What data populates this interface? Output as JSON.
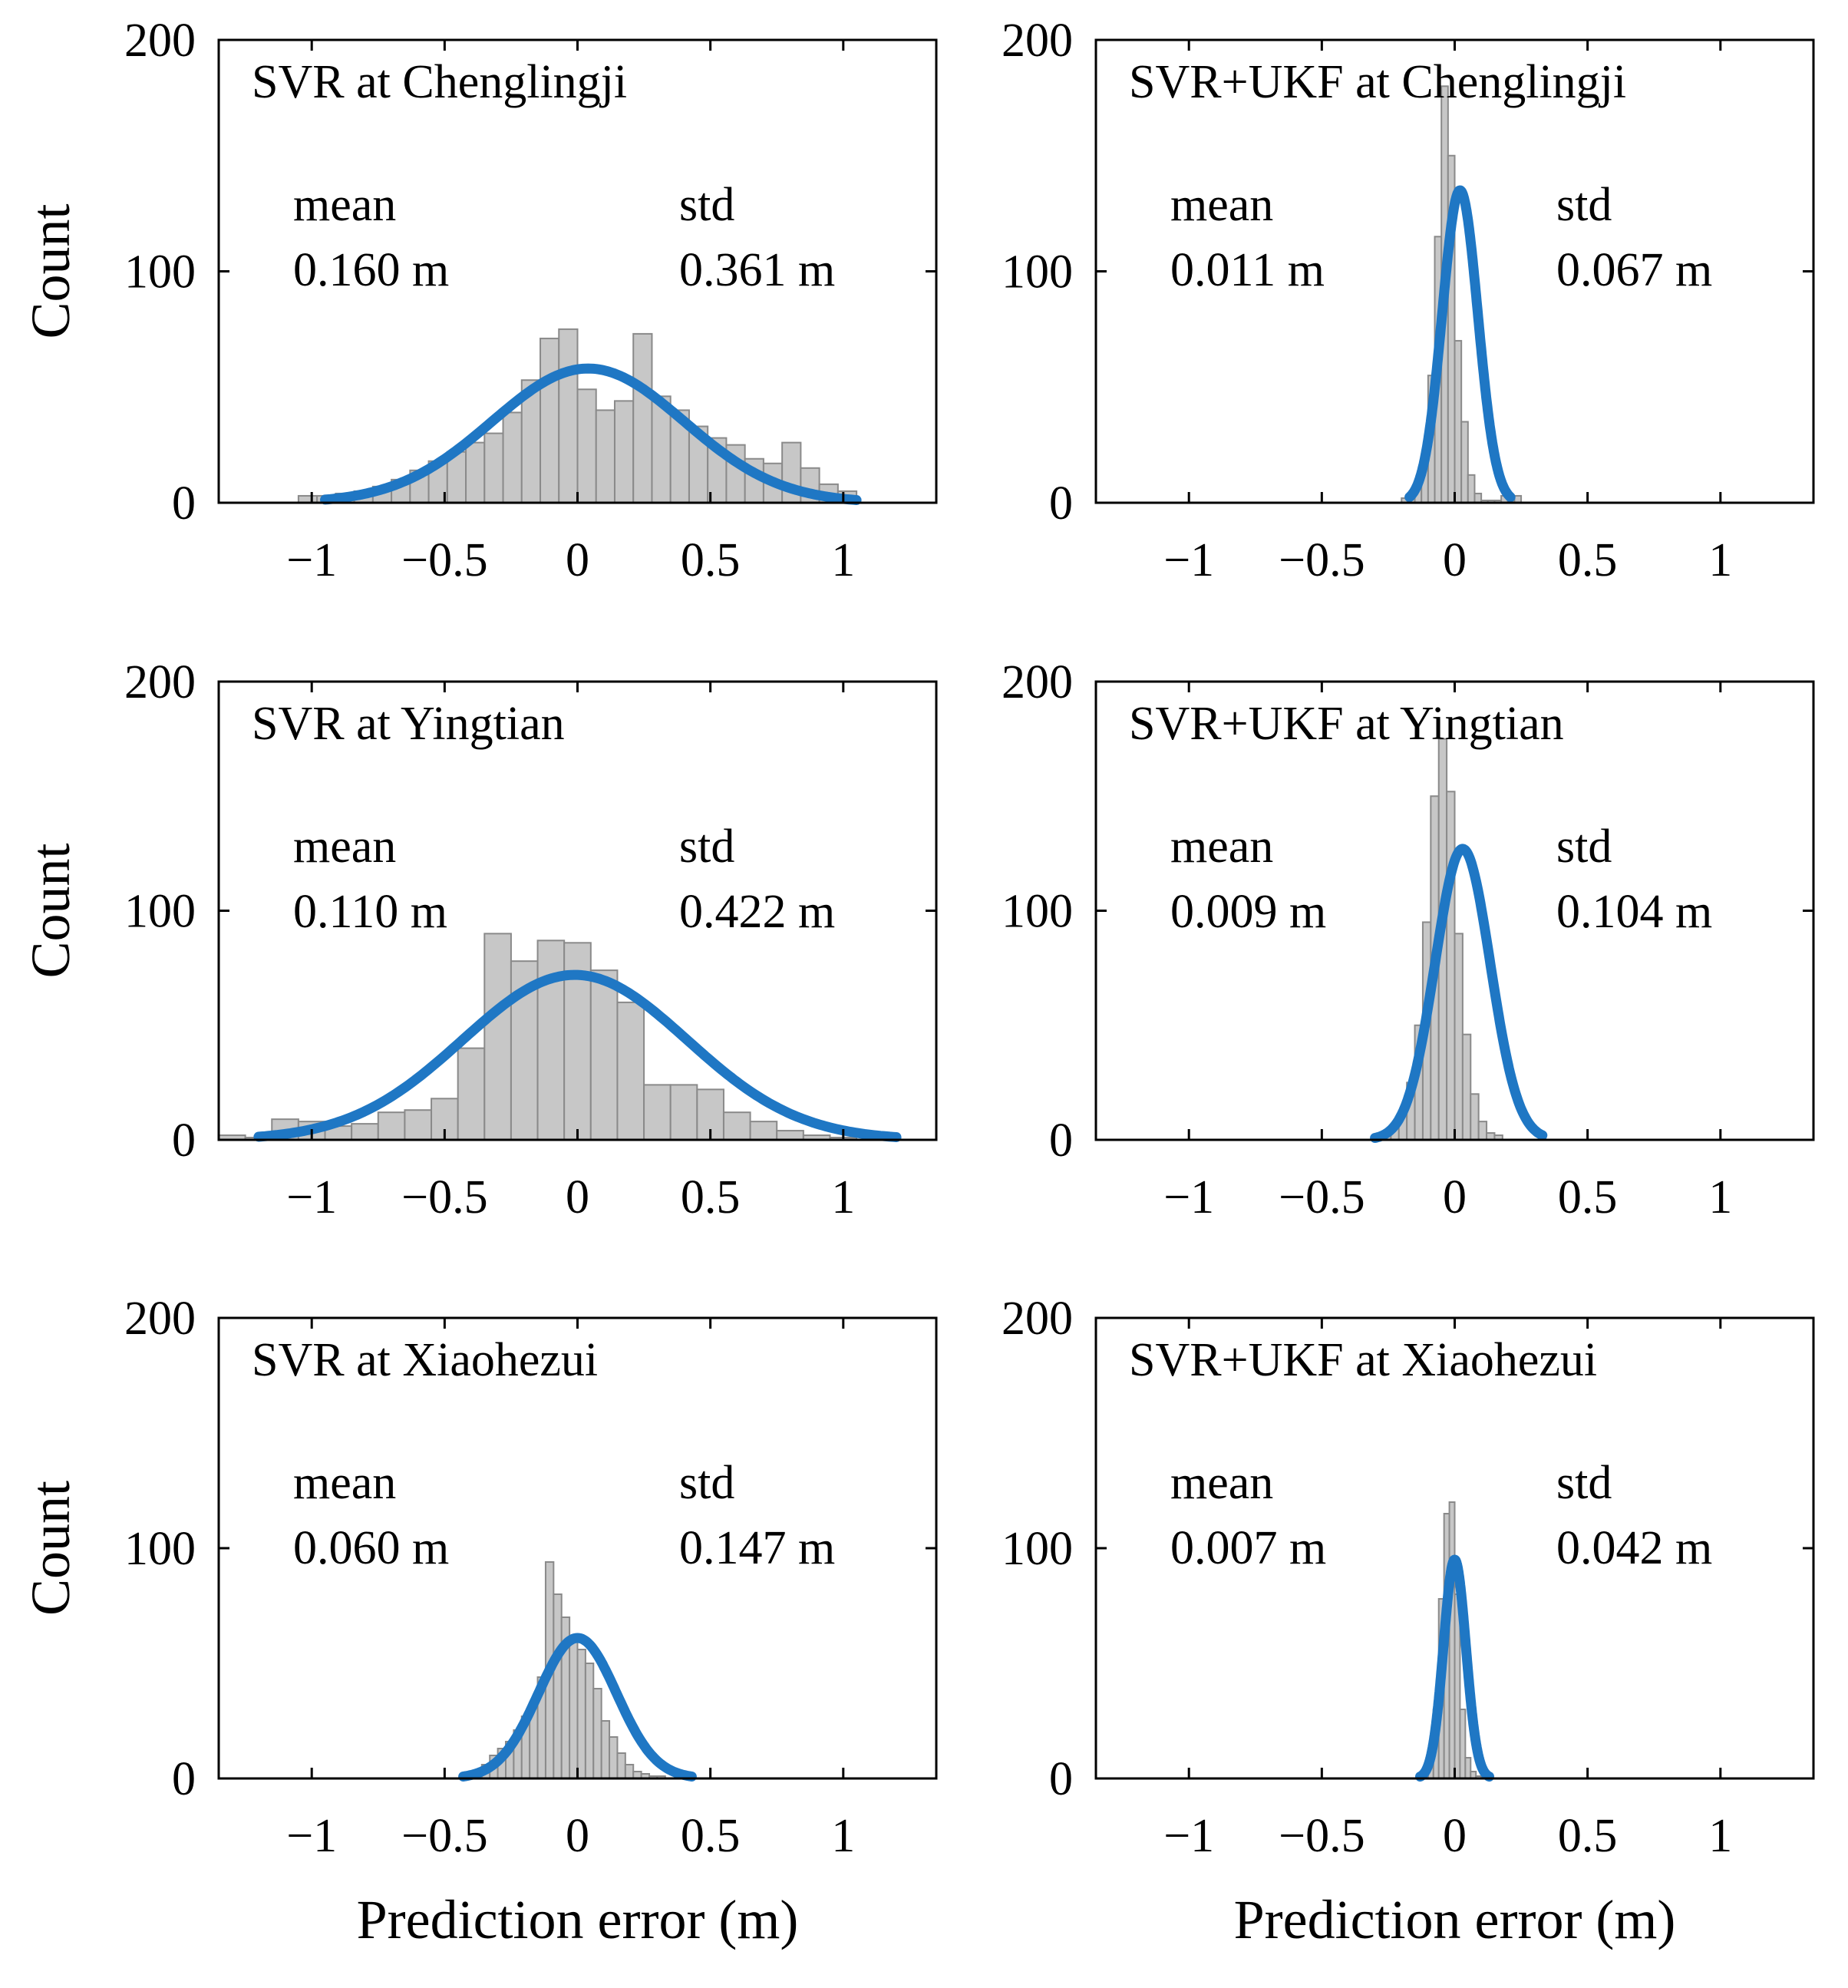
{
  "figure": {
    "ylabel": "Count",
    "xlabel": "Prediction error (m)",
    "mean_label": "mean",
    "std_label": "std"
  },
  "colors": {
    "bar_fill": "#c7c7c7",
    "bar_edge": "#8a8a8a",
    "fit_line": "#1f77c4"
  },
  "chart_data": [
    {
      "type": "bar",
      "title": "SVR  at Chenglingji",
      "model": "SVR",
      "station": "Chenglingji",
      "mean": "0.160 m",
      "std": "0.361 m",
      "mu": 0.04,
      "sigma": 0.361,
      "fit_peak": 58,
      "fit_range": [
        -0.95,
        1.05
      ],
      "xlim": [
        -1.35,
        1.35
      ],
      "ylim": [
        0,
        200
      ],
      "xticks": [
        -1,
        -0.5,
        0,
        0.5,
        1
      ],
      "yticks": [
        0,
        100,
        200
      ],
      "bins": {
        "start": -1.05,
        "width": 0.07,
        "counts": [
          3,
          3,
          4,
          5,
          7,
          10,
          14,
          18,
          22,
          26,
          30,
          39,
          53,
          71,
          75,
          49,
          40,
          44,
          73,
          46,
          40,
          33,
          28,
          25,
          19,
          17,
          26,
          15,
          8,
          5
        ]
      }
    },
    {
      "type": "bar",
      "title": "SVR+UKF  at Chenglingji",
      "model": "SVR+UKF",
      "station": "Chenglingji",
      "mean": "0.011 m",
      "std": "0.067 m",
      "mu": 0.02,
      "sigma": 0.067,
      "fit_peak": 135,
      "fit_range": [
        -0.17,
        0.21
      ],
      "xlim": [
        -1.35,
        1.35
      ],
      "ylim": [
        0,
        200
      ],
      "xticks": [
        -1,
        -0.5,
        0,
        0.5,
        1
      ],
      "yticks": [
        0,
        100,
        200
      ],
      "bins": {
        "start": -0.2,
        "width": 0.025,
        "counts": [
          2,
          2,
          8,
          20,
          55,
          115,
          180,
          150,
          70,
          35,
          12,
          4,
          1,
          1,
          1,
          3,
          2,
          3
        ]
      }
    },
    {
      "type": "bar",
      "title": "SVR  at Yingtian",
      "model": "SVR",
      "station": "Yingtian",
      "mean": "0.110 m",
      "std": "0.422 m",
      "mu": -0.01,
      "sigma": 0.422,
      "fit_peak": 72,
      "fit_range": [
        -1.2,
        1.2
      ],
      "xlim": [
        -1.35,
        1.35
      ],
      "ylim": [
        0,
        200
      ],
      "xticks": [
        -1,
        -0.5,
        0,
        0.5,
        1
      ],
      "yticks": [
        0,
        100,
        200
      ],
      "bins": {
        "start": -1.35,
        "width": 0.1,
        "counts": [
          2,
          1,
          9,
          8,
          6,
          7,
          12,
          13,
          18,
          40,
          90,
          78,
          87,
          86,
          74,
          60,
          24,
          24,
          22,
          12,
          8,
          4,
          2,
          1
        ]
      }
    },
    {
      "type": "bar",
      "title": "SVR+UKF  at Yingtian",
      "model": "SVR+UKF",
      "station": "Yingtian",
      "mean": "0.009 m",
      "std": "0.104 m",
      "mu": 0.03,
      "sigma": 0.104,
      "fit_peak": 127,
      "fit_range": [
        -0.3,
        0.33
      ],
      "xlim": [
        -1.35,
        1.35
      ],
      "ylim": [
        0,
        200
      ],
      "xticks": [
        -1,
        -0.5,
        0,
        0.5,
        1
      ],
      "yticks": [
        0,
        100,
        200
      ],
      "bins": {
        "start": -0.3,
        "width": 0.03,
        "counts": [
          1,
          3,
          6,
          12,
          25,
          50,
          95,
          150,
          175,
          152,
          90,
          46,
          20,
          8,
          3,
          2
        ]
      }
    },
    {
      "type": "bar",
      "title": "SVR  at Xiaohezui",
      "model": "SVR",
      "station": "Xiaohezui",
      "mean": "0.060 m",
      "std": "0.147 m",
      "mu": 0.0,
      "sigma": 0.147,
      "fit_peak": 61,
      "fit_range": [
        -0.43,
        0.43
      ],
      "xlim": [
        -1.35,
        1.35
      ],
      "ylim": [
        0,
        200
      ],
      "xticks": [
        -1,
        -0.5,
        0,
        0.5,
        1
      ],
      "yticks": [
        0,
        100,
        200
      ],
      "bins": {
        "start": -0.42,
        "width": 0.03,
        "counts": [
          1,
          3,
          6,
          10,
          13,
          16,
          21,
          27,
          33,
          44,
          94,
          80,
          70,
          62,
          56,
          50,
          39,
          25,
          18,
          11,
          6,
          3,
          2,
          1,
          1
        ]
      }
    },
    {
      "type": "bar",
      "title": "SVR+UKF  at Xiaohezui",
      "model": "SVR+UKF",
      "station": "Xiaohezui",
      "mean": "0.007 m",
      "std": "0.042 m",
      "mu": 0.0,
      "sigma": 0.042,
      "fit_peak": 95,
      "fit_range": [
        -0.13,
        0.13
      ],
      "xlim": [
        -1.35,
        1.35
      ],
      "ylim": [
        0,
        200
      ],
      "xticks": [
        -1,
        -0.5,
        0,
        0.5,
        1
      ],
      "yticks": [
        0,
        100,
        200
      ],
      "bins": {
        "start": -0.14,
        "width": 0.02,
        "counts": [
          1,
          3,
          9,
          30,
          78,
          115,
          120,
          80,
          30,
          9,
          3,
          1,
          1,
          1
        ]
      }
    }
  ]
}
